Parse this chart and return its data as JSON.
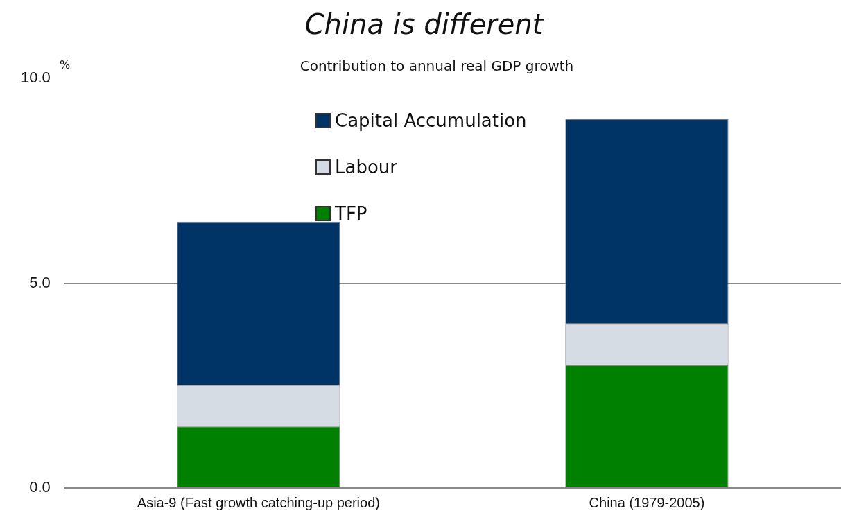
{
  "chart_data": {
    "type": "bar",
    "title": "China is different",
    "subtitle": "Contribution to annual real GDP growth",
    "ylabel": "%",
    "categories": [
      "Asia-9 (Fast growth catching-up period)",
      "China (1979-2005)"
    ],
    "series": [
      {
        "name": "TFP",
        "color": "#008000",
        "values": [
          1.5,
          3.0
        ]
      },
      {
        "name": "Labour",
        "color": "#d6dce4",
        "values": [
          1.0,
          1.0
        ]
      },
      {
        "name": "Capital Accumulation",
        "color": "#003366",
        "values": [
          4.0,
          5.0
        ]
      }
    ],
    "stacked": true,
    "ylim": [
      0,
      10
    ],
    "yticks": [
      {
        "value": 0,
        "label": "0.0"
      },
      {
        "value": 5,
        "label": "5.0"
      },
      {
        "value": 10,
        "label": "10.0"
      }
    ],
    "grid": "y",
    "legend": "top"
  }
}
